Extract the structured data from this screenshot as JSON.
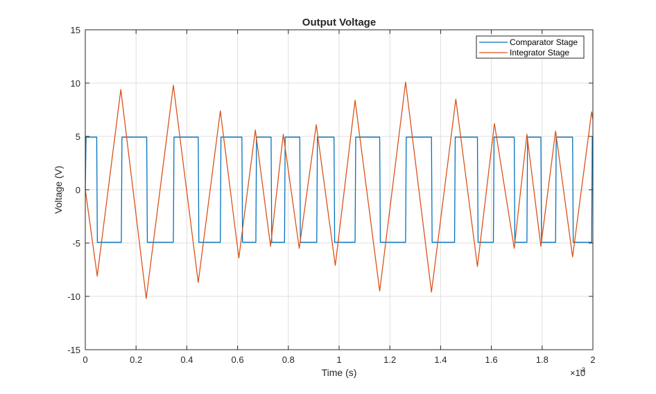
{
  "chart_data": {
    "type": "line",
    "title": "Output Voltage",
    "xlabel": "Time (s)",
    "ylabel": "Voltage (V)",
    "x_exponent_base": "×10",
    "x_exponent_power": "-3",
    "xlim": [
      0,
      2
    ],
    "ylim": [
      -15,
      15
    ],
    "x_ticks": [
      0,
      0.2,
      0.4,
      0.6,
      0.8,
      1,
      1.2,
      1.4,
      1.6,
      1.8,
      2
    ],
    "x_tick_labels": [
      "0",
      "0.2",
      "0.4",
      "0.6",
      "0.8",
      "1",
      "1.2",
      "1.4",
      "1.6",
      "1.8",
      "2"
    ],
    "y_ticks": [
      -15,
      -10,
      -5,
      0,
      5,
      10,
      15
    ],
    "y_tick_labels": [
      "-15",
      "-10",
      "-5",
      "0",
      "5",
      "10",
      "15"
    ],
    "grid": true,
    "legend_position": "top-right",
    "series": [
      {
        "name": "Comparator Stage",
        "color": "#0072BD",
        "kind": "square",
        "high": 4.93,
        "low": -4.93,
        "switch_times": [
          0.003,
          0.045,
          0.142,
          0.242,
          0.347,
          0.445,
          0.532,
          0.617,
          0.672,
          0.732,
          0.785,
          0.845,
          0.912,
          0.98,
          1.063,
          1.16,
          1.262,
          1.364,
          1.455,
          1.545,
          1.608,
          1.69,
          1.74,
          1.795,
          1.853,
          1.92,
          1.995
        ]
      },
      {
        "name": "Integrator Stage",
        "color": "#D95319",
        "kind": "triangle",
        "points": [
          [
            0,
            0
          ],
          [
            0.047,
            -8.1
          ],
          [
            0.14,
            9.4
          ],
          [
            0.24,
            -10.2
          ],
          [
            0.347,
            9.8
          ],
          [
            0.445,
            -8.7
          ],
          [
            0.532,
            7.4
          ],
          [
            0.605,
            -6.4
          ],
          [
            0.67,
            5.6
          ],
          [
            0.73,
            -5.3
          ],
          [
            0.78,
            5.2
          ],
          [
            0.843,
            -5.5
          ],
          [
            0.91,
            6.1
          ],
          [
            0.985,
            -7.1
          ],
          [
            1.063,
            8.4
          ],
          [
            1.16,
            -9.5
          ],
          [
            1.262,
            10.1
          ],
          [
            1.364,
            -9.6
          ],
          [
            1.46,
            8.5
          ],
          [
            1.545,
            -7.2
          ],
          [
            1.612,
            6.2
          ],
          [
            1.69,
            -5.5
          ],
          [
            1.74,
            5.2
          ],
          [
            1.795,
            -5.3
          ],
          [
            1.853,
            5.5
          ],
          [
            1.92,
            -6.3
          ],
          [
            1.995,
            7.3
          ],
          [
            2.0,
            6.6
          ]
        ]
      }
    ]
  }
}
